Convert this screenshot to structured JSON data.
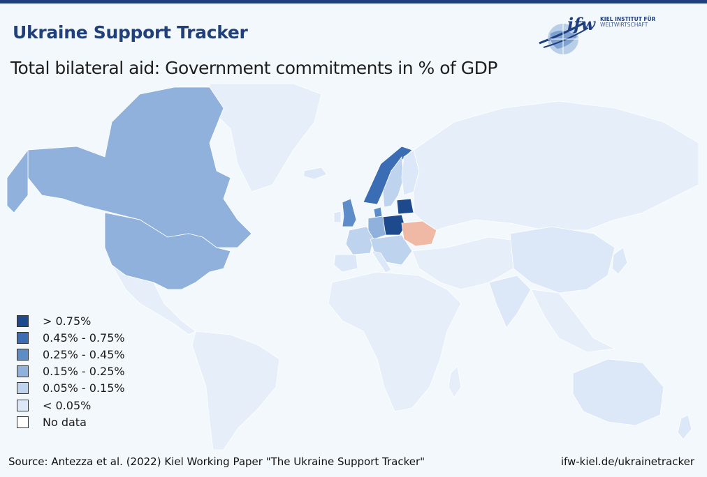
{
  "header": {
    "title": "Ukraine Support Tracker",
    "subtitle": "Total bilateral aid: Government commitments in % of GDP"
  },
  "logo": {
    "mark": "ifw",
    "org_line1": "KIEL INSTITUT FÜR",
    "org_line2": "WELTWIRTSCHAFT"
  },
  "legend": {
    "items": [
      {
        "label": "> 0.75%",
        "color": "#1d4a8c"
      },
      {
        "label": "0.45% - 0.75%",
        "color": "#3a6db3"
      },
      {
        "label": "0.25% - 0.45%",
        "color": "#5c8dc8"
      },
      {
        "label": "0.15% - 0.25%",
        "color": "#8fb1dc"
      },
      {
        "label": "0.05% - 0.15%",
        "color": "#bed3ee"
      },
      {
        "label": "< 0.05%",
        "color": "#dce8f8"
      },
      {
        "label": "No data",
        "color": "#ffffff"
      }
    ]
  },
  "map_colors": {
    "background": "#f2f8fc",
    "no_data_land": "#e8eef9",
    "ukraine": "#f0b9a5"
  },
  "footer": {
    "source": "Source: Antezza et al. (2022) Kiel Working Paper \"The Ukraine Support Tracker\"",
    "link": "ifw-kiel.de/ukrainetracker"
  }
}
